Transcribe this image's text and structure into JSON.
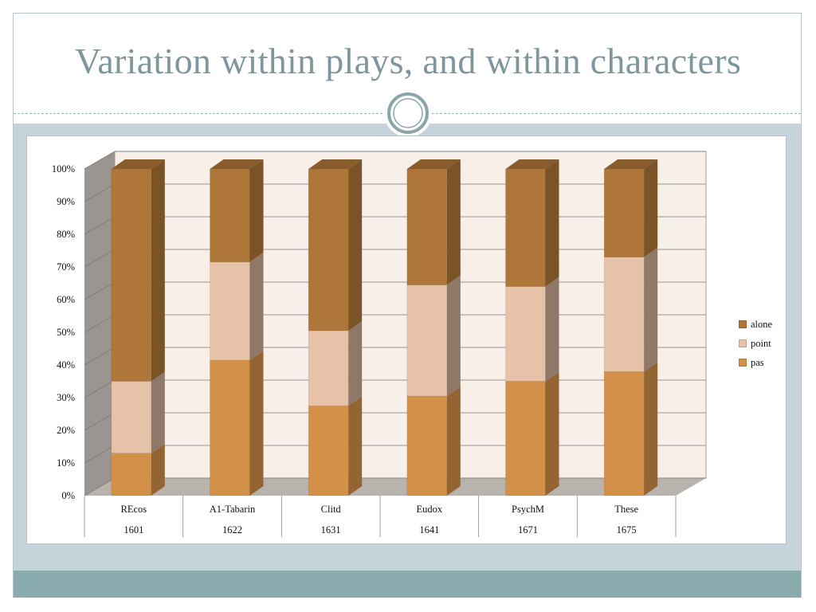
{
  "slide": {
    "title": "Variation within plays, and within characters"
  },
  "chart_data": {
    "type": "bar",
    "stacked": true,
    "percent": true,
    "three_d": true,
    "categories": [
      "REcos",
      "A1-Tabarin",
      "Clitd",
      "Eudox",
      "PsychM",
      "These"
    ],
    "years": [
      "1601",
      "1622",
      "1631",
      "1641",
      "1671",
      "1675"
    ],
    "series": [
      {
        "name": "pas",
        "values": [
          13,
          41.5,
          27.5,
          30.5,
          35,
          38
        ],
        "color": "#d39048"
      },
      {
        "name": "point",
        "values": [
          22,
          30,
          23,
          34,
          29,
          35
        ],
        "color": "#e6c2a8"
      },
      {
        "name": "alone",
        "values": [
          65,
          28.5,
          49.5,
          35.5,
          36,
          27
        ],
        "color": "#ae7638"
      }
    ],
    "ylim": [
      0,
      100
    ],
    "yticks": [
      "0%",
      "10%",
      "20%",
      "30%",
      "40%",
      "50%",
      "60%",
      "70%",
      "80%",
      "90%",
      "100%"
    ],
    "grid": true,
    "legend": "right",
    "colors": {
      "back_wall": "#f8efe9",
      "side_wall": "#9a9590",
      "floor": "#b9b3ae",
      "gridline": "#7a7a7a"
    }
  }
}
